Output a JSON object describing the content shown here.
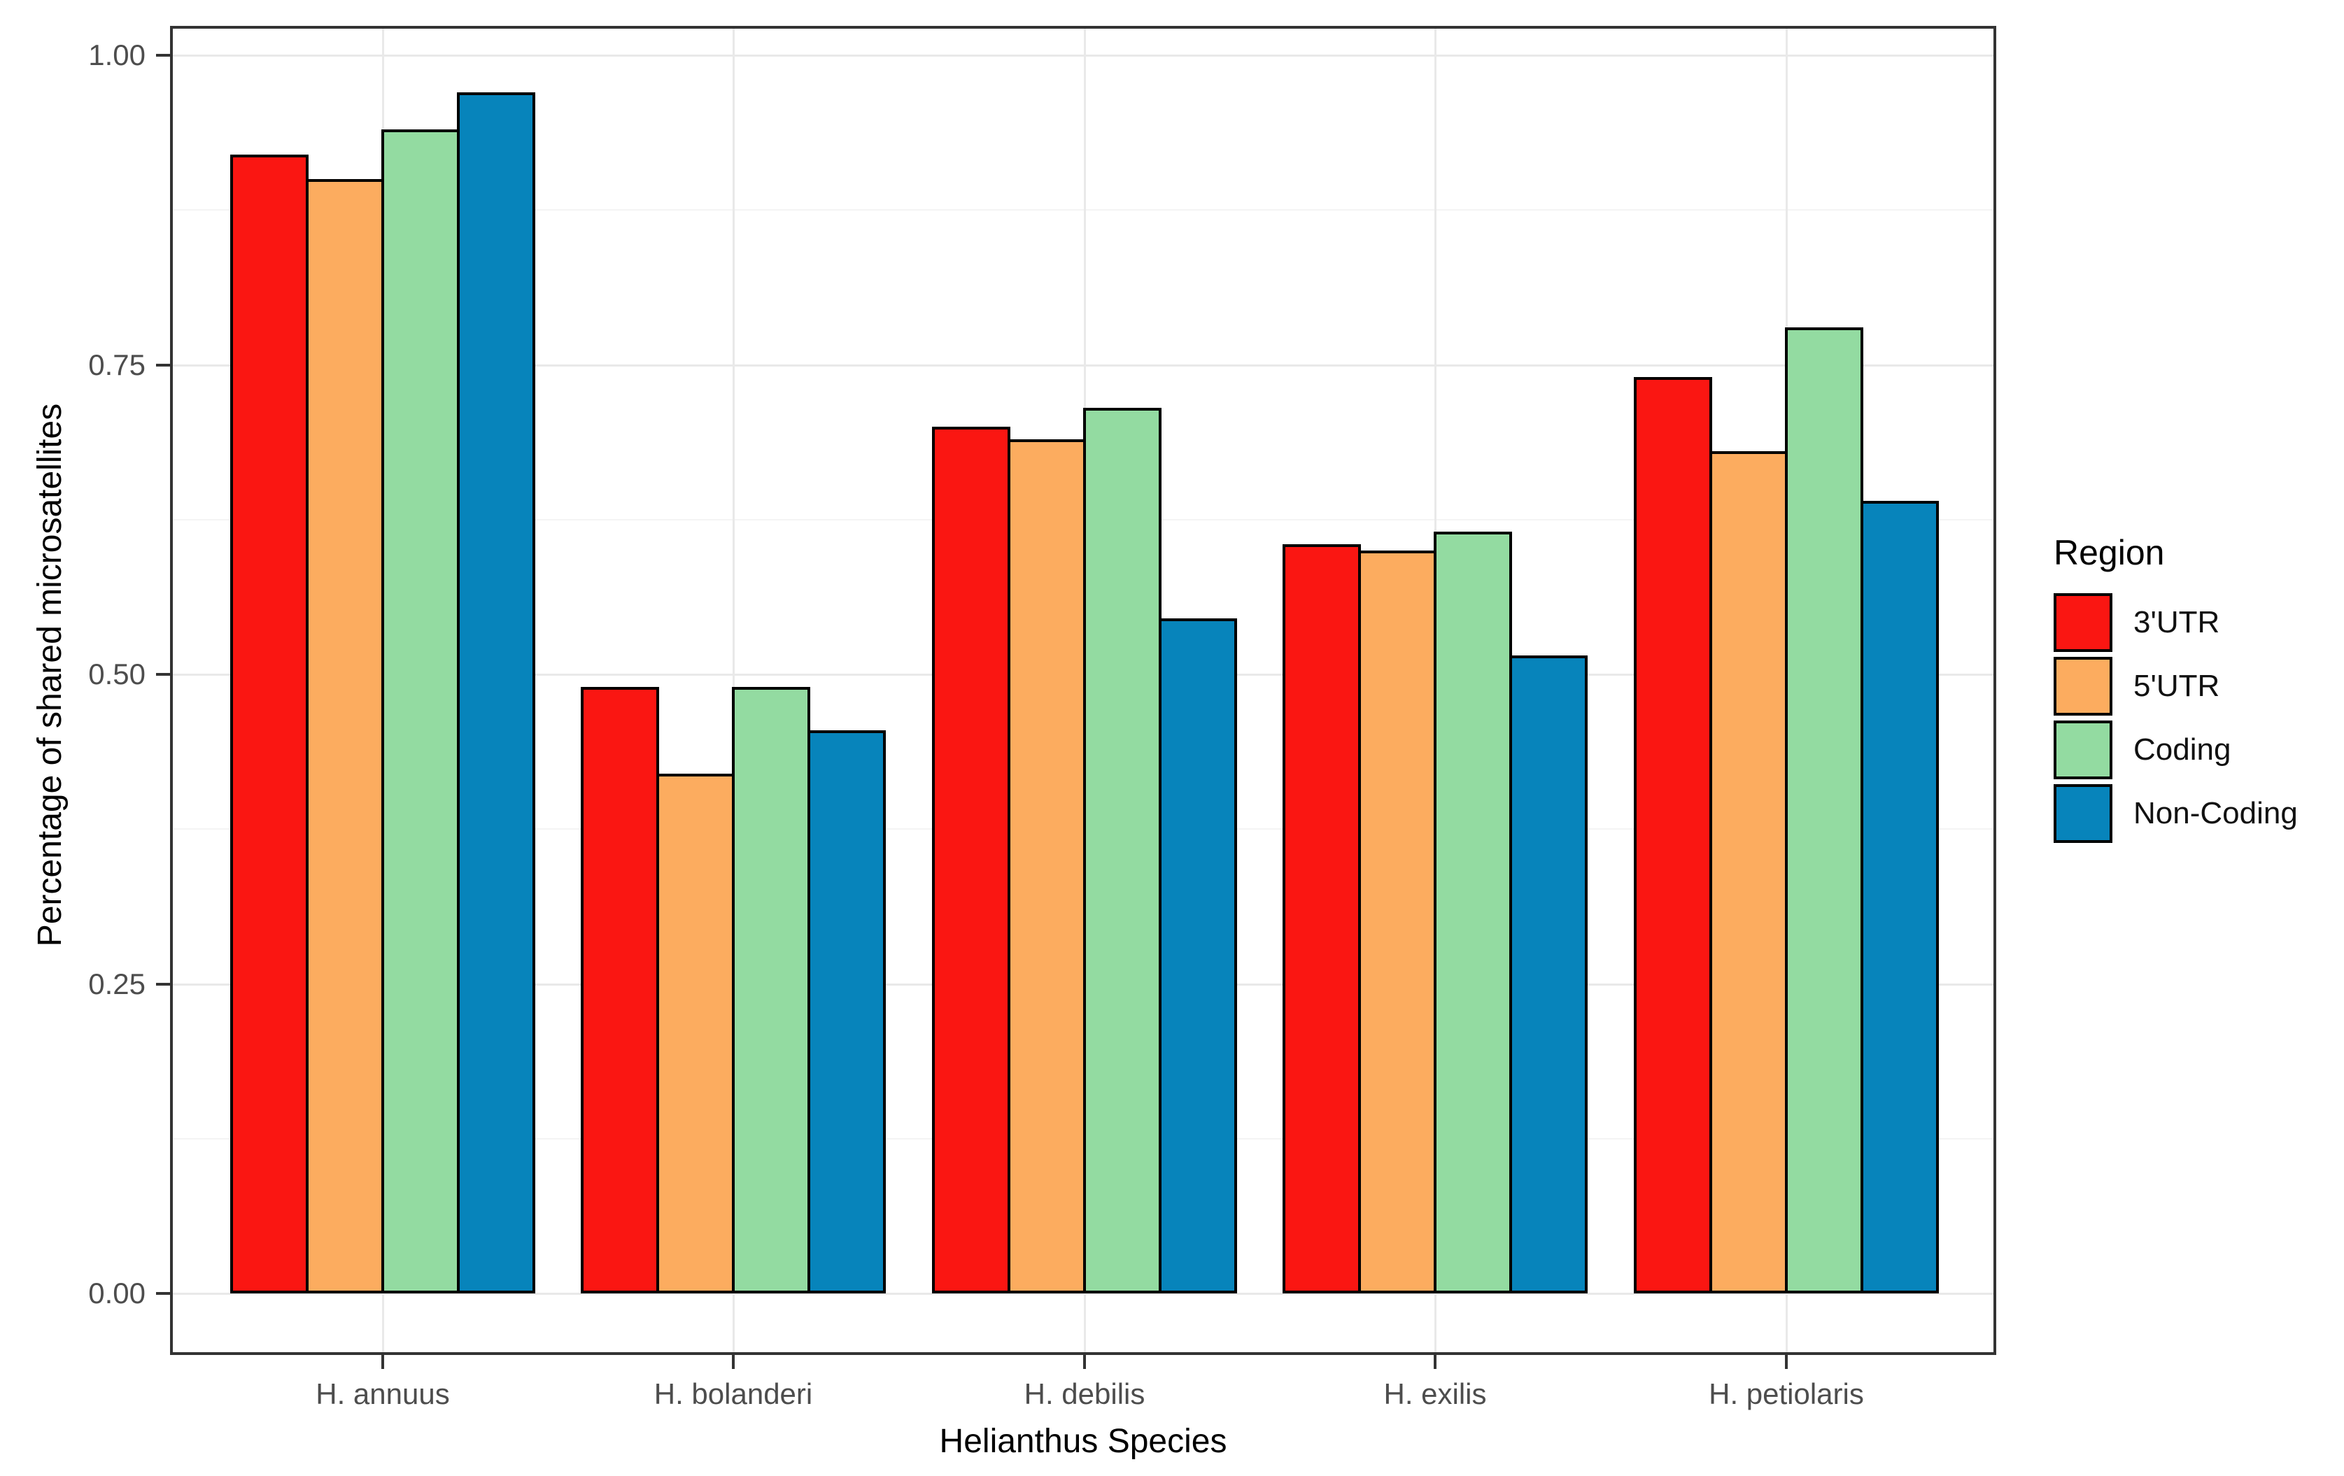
{
  "chart_data": {
    "type": "bar",
    "title": "",
    "categories": [
      "H. annuus",
      "H. bolanderi",
      "H. debilis",
      "H. exilis",
      "H. petiolaris"
    ],
    "series": [
      {
        "name": "3'UTR",
        "color": "#FA1612",
        "values": [
          0.92,
          0.49,
          0.7,
          0.605,
          0.74
        ]
      },
      {
        "name": "5'UTR",
        "color": "#FCAC5F",
        "values": [
          0.9,
          0.42,
          0.69,
          0.6,
          0.68
        ]
      },
      {
        "name": "Coding",
        "color": "#93DBA1",
        "values": [
          0.94,
          0.49,
          0.715,
          0.615,
          0.78
        ]
      },
      {
        "name": "Non-Coding",
        "color": "#0784BB",
        "values": [
          0.97,
          0.455,
          0.545,
          0.515,
          0.64
        ]
      }
    ],
    "xlabel": "Helianthus Species",
    "ylabel": "Percentage of shared microsatellites",
    "ylim": [
      0,
      1.0
    ],
    "yticks": [
      "0.00",
      "0.25",
      "0.50",
      "0.75",
      "1.00"
    ],
    "ytick_values": [
      0,
      0.25,
      0.5,
      0.75,
      1.0
    ],
    "minor_gridlines": [
      0.125,
      0.375,
      0.625,
      0.875
    ],
    "grid": true,
    "legend_title": "Region",
    "legend_position": "right",
    "bar_border_color": "#000000"
  },
  "colors": {
    "background": "#FFFFFF",
    "panel_border": "#333333",
    "grid_major": "#E9E9E9",
    "grid_minor": "#F4F4F4",
    "tick_mark": "#333333",
    "tick_label": "#4D4D4D",
    "axis_title": "#000000",
    "legend_text": "#111111"
  }
}
